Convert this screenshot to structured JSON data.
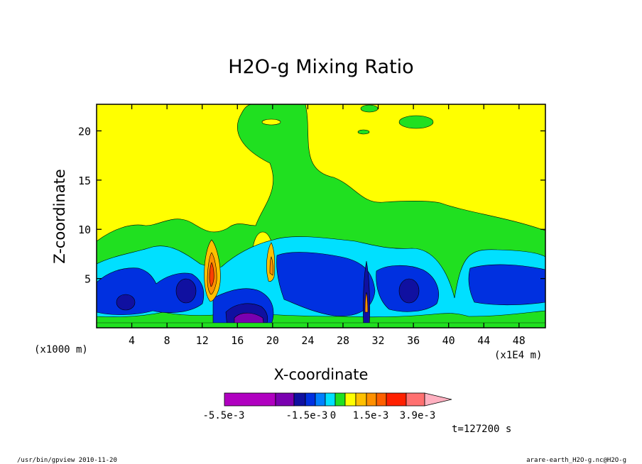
{
  "chart_data": {
    "type": "heatmap",
    "title": "H2O-g Mixing Ratio",
    "xlabel": "X-coordinate",
    "ylabel": "Z-coordinate",
    "x_unit_left": "(x1000 m)",
    "x_unit_right": "(x1E4 m)",
    "xlim": [
      0,
      51
    ],
    "ylim": [
      0,
      22.7
    ],
    "xticks": [
      4,
      8,
      12,
      16,
      20,
      24,
      28,
      32,
      36,
      40,
      44,
      48
    ],
    "xtick_labels": [
      "4",
      "8",
      "12",
      "16",
      "20",
      "24",
      "28",
      "32",
      "36",
      "40",
      "44",
      "48"
    ],
    "yticks": [
      5,
      10,
      15,
      20
    ],
    "ytick_labels": [
      "5",
      "10",
      "15",
      "20"
    ],
    "time_label": "t=127200 s",
    "colorbar": {
      "colors": [
        "#b000c0",
        "#7a00b0",
        "#1010a0",
        "#0030e0",
        "#0080ff",
        "#00e0ff",
        "#20e020",
        "#ffff00",
        "#ffc000",
        "#ff9000",
        "#ff6000",
        "#ff2000",
        "#ff7070",
        "#ffb0c0"
      ],
      "labels": [
        "-5.5e-3",
        "-1.5e-3",
        "0",
        "1.5e-3",
        "3.9e-3"
      ]
    },
    "field_colors": {
      "background": "#ffff00",
      "band_green": "#20e020",
      "band_cyan": "#00e0ff",
      "core_blue": "#0030e0",
      "core_dark": "#1010a0",
      "purple": "#7a00b0",
      "orange": "#ff9000",
      "red": "#ff4000"
    }
  },
  "footer": {
    "left": "/usr/bin/gpview  2010-11-20",
    "right": "arare-earth_H2O-g.nc@H2O-g"
  }
}
